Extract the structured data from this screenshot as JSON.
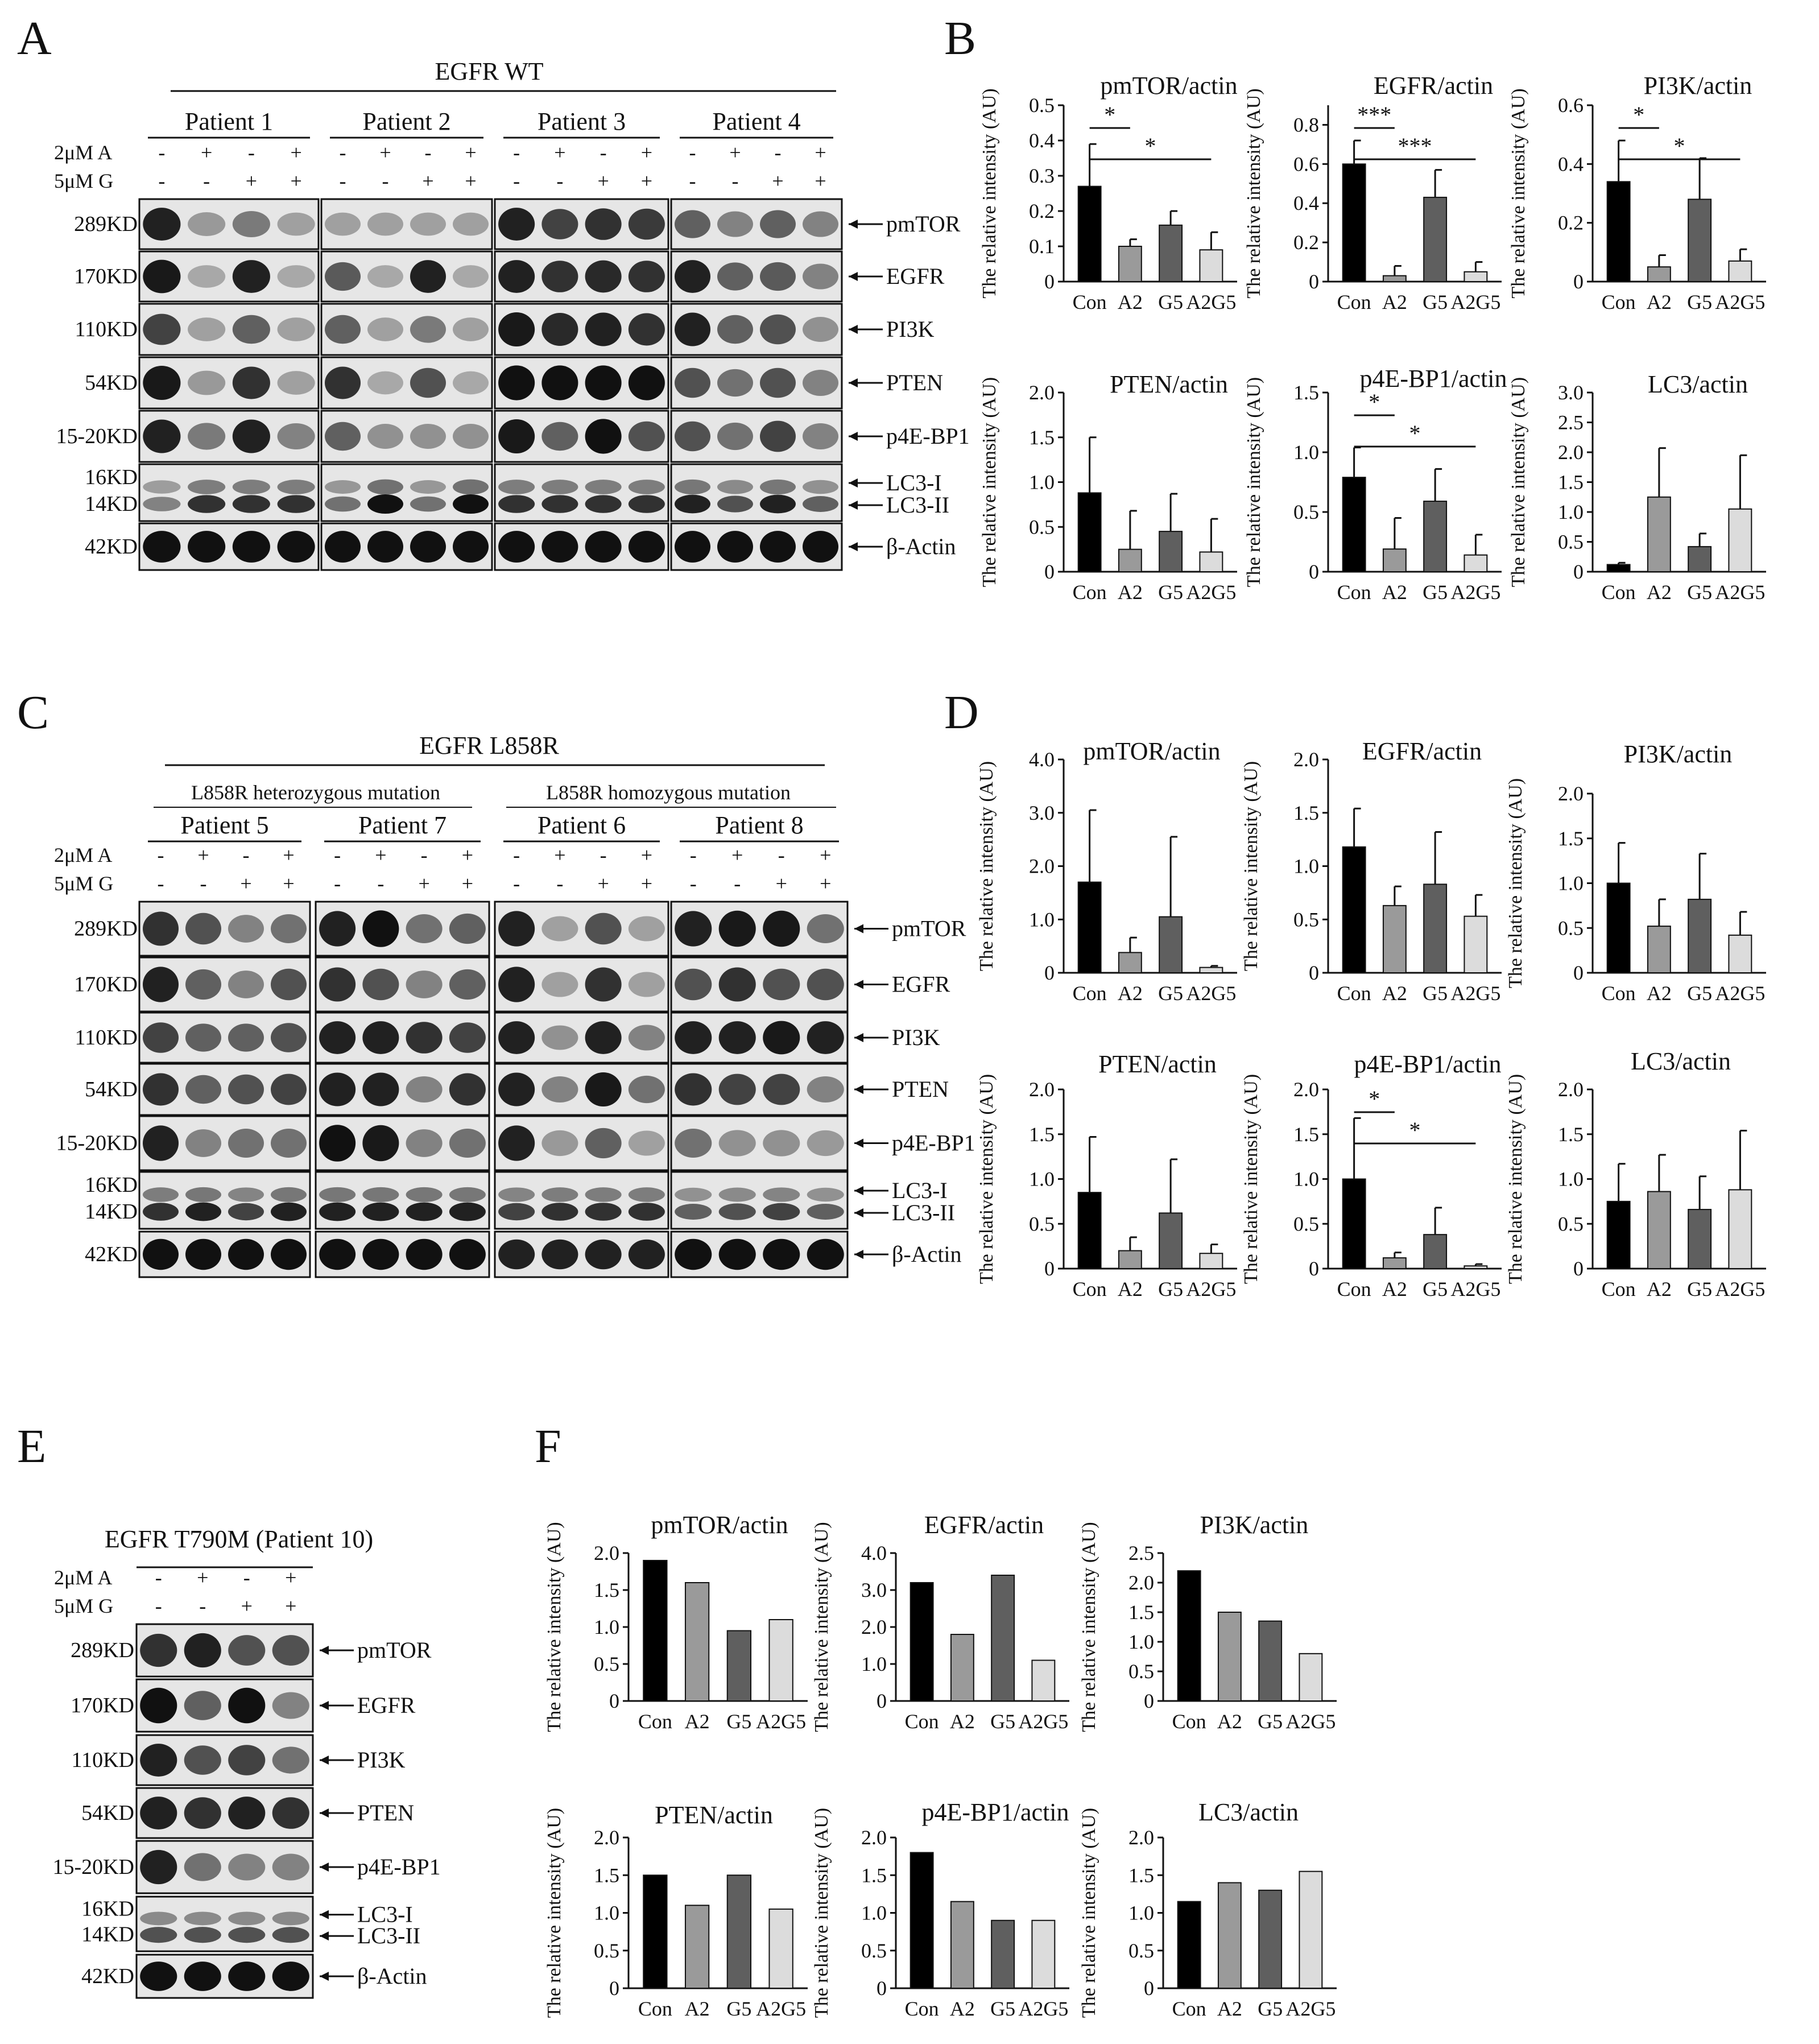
{
  "figure": {
    "panels": {
      "A": {
        "label": "A",
        "header": "EGFR  WT",
        "groups": [
          "Patient 1",
          "Patient 2",
          "Patient 3",
          "Patient 4"
        ],
        "conditions": [
          {
            "name": "2μM A",
            "signs": [
              "-",
              "+",
              "-",
              "+"
            ]
          },
          {
            "name": "5μM G",
            "signs": [
              "-",
              "-",
              "+",
              "+"
            ]
          }
        ],
        "rows": [
          {
            "kd": "289KD",
            "proteins": [
              "pmTOR"
            ]
          },
          {
            "kd": "170KD",
            "proteins": [
              "EGFR"
            ]
          },
          {
            "kd": "110KD",
            "proteins": [
              "PI3K"
            ]
          },
          {
            "kd": "54KD",
            "proteins": [
              "PTEN"
            ]
          },
          {
            "kd": "15-20KD",
            "proteins": [
              "p4E-BP1"
            ]
          },
          {
            "kd": "16KD\n14KD",
            "proteins": [
              "LC3-I",
              "LC3-II"
            ]
          },
          {
            "kd": "42KD",
            "proteins": [
              "β-Actin"
            ]
          }
        ]
      },
      "C": {
        "label": "C",
        "header": "EGFR  L858R",
        "subheaders": [
          "L858R heterozygous mutation",
          "L858R homozygous mutation"
        ],
        "groups": [
          "Patient 5",
          "Patient 7",
          "Patient 6",
          "Patient 8"
        ],
        "conditions": [
          {
            "name": "2μM A",
            "signs": [
              "-",
              "+",
              "-",
              "+"
            ]
          },
          {
            "name": "5μM G",
            "signs": [
              "-",
              "-",
              "+",
              "+"
            ]
          }
        ],
        "rows": [
          {
            "kd": "289KD",
            "proteins": [
              "pmTOR"
            ]
          },
          {
            "kd": "170KD",
            "proteins": [
              "EGFR"
            ]
          },
          {
            "kd": "110KD",
            "proteins": [
              "PI3K"
            ]
          },
          {
            "kd": "54KD",
            "proteins": [
              "PTEN"
            ]
          },
          {
            "kd": "15-20KD",
            "proteins": [
              "p4E-BP1"
            ]
          },
          {
            "kd": "16KD\n14KD",
            "proteins": [
              "LC3-I",
              "LC3-II"
            ]
          },
          {
            "kd": "42KD",
            "proteins": [
              "β-Actin"
            ]
          }
        ]
      },
      "E": {
        "label": "E",
        "header": "EGFR   T790M  (Patient 10)",
        "conditions": [
          {
            "name": "2μM A",
            "signs": [
              "-",
              "+",
              "-",
              "+"
            ]
          },
          {
            "name": "5μM G",
            "signs": [
              "-",
              "-",
              "+",
              "+"
            ]
          }
        ],
        "rows": [
          {
            "kd": "289KD",
            "proteins": [
              "pmTOR"
            ]
          },
          {
            "kd": "170KD",
            "proteins": [
              "EGFR"
            ]
          },
          {
            "kd": "110KD",
            "proteins": [
              "PI3K"
            ]
          },
          {
            "kd": "54KD",
            "proteins": [
              "PTEN"
            ]
          },
          {
            "kd": "15-20KD",
            "proteins": [
              "p4E-BP1"
            ]
          },
          {
            "kd": "16KD\n14KD",
            "proteins": [
              "LC3-I",
              "LC3-II"
            ]
          },
          {
            "kd": "42KD",
            "proteins": [
              "β-Actin"
            ]
          }
        ]
      },
      "B": {
        "label": "B"
      },
      "D": {
        "label": "D"
      },
      "F": {
        "label": "F"
      }
    }
  },
  "chart_data": [
    {
      "panel": "B",
      "type": "bar",
      "title": "pmTOR/actin",
      "ylabel": "The relative intensity (AU)",
      "categories": [
        "Con",
        "A2",
        "G5",
        "A2G5"
      ],
      "values": [
        0.27,
        0.1,
        0.16,
        0.09
      ],
      "errors": [
        0.12,
        0.02,
        0.04,
        0.05
      ],
      "ylim": [
        0,
        0.5
      ],
      "yticks": [
        "0",
        "0.1",
        "0.2",
        "0.3",
        "0.4",
        "0.5"
      ],
      "ytick_values": [
        0,
        0.1,
        0.2,
        0.3,
        0.4,
        0.5
      ],
      "significance": [
        {
          "from": 0,
          "to": 1,
          "label": "*"
        },
        {
          "from": 0,
          "to": 3,
          "label": "*"
        }
      ]
    },
    {
      "panel": "B",
      "type": "bar",
      "title": "EGFR/actin",
      "ylabel": "The relative intensity (AU)",
      "categories": [
        "Con",
        "A2",
        "G5",
        "A2G5"
      ],
      "values": [
        0.6,
        0.03,
        0.43,
        0.05
      ],
      "errors": [
        0.12,
        0.05,
        0.14,
        0.05
      ],
      "ylim": [
        0,
        0.9
      ],
      "yticks": [
        "0",
        "0.2",
        "0.4",
        "0.6",
        "0.8"
      ],
      "ytick_values": [
        0,
        0.2,
        0.4,
        0.6,
        0.8
      ],
      "significance": [
        {
          "from": 0,
          "to": 1,
          "label": "***"
        },
        {
          "from": 0,
          "to": 3,
          "label": "***"
        }
      ]
    },
    {
      "panel": "B",
      "type": "bar",
      "title": "PI3K/actin",
      "ylabel": "The relative intensity (AU)",
      "categories": [
        "Con",
        "A2",
        "G5",
        "A2G5"
      ],
      "values": [
        0.34,
        0.05,
        0.28,
        0.07
      ],
      "errors": [
        0.14,
        0.04,
        0.14,
        0.04
      ],
      "ylim": [
        0,
        0.6
      ],
      "yticks": [
        "0",
        "0.2",
        "0.4",
        "0.6"
      ],
      "ytick_values": [
        0,
        0.2,
        0.4,
        0.6
      ],
      "significance": [
        {
          "from": 0,
          "to": 1,
          "label": "*"
        },
        {
          "from": 0,
          "to": 3,
          "label": "*"
        }
      ]
    },
    {
      "panel": "B",
      "type": "bar",
      "title": "PTEN/actin",
      "ylabel": "The relative intensity (AU)",
      "categories": [
        "Con",
        "A2",
        "G5",
        "A2G5"
      ],
      "values": [
        0.88,
        0.25,
        0.45,
        0.22
      ],
      "errors": [
        0.62,
        0.43,
        0.42,
        0.37
      ],
      "ylim": [
        0,
        2.0
      ],
      "yticks": [
        "0",
        "0.5",
        "1.0",
        "1.5",
        "2.0"
      ],
      "ytick_values": [
        0,
        0.5,
        1.0,
        1.5,
        2.0
      ],
      "significance": []
    },
    {
      "panel": "B",
      "type": "bar",
      "title": "p4E-BP1/actin",
      "ylabel": "The relative intensity (AU)",
      "categories": [
        "Con",
        "A2",
        "G5",
        "A2G5"
      ],
      "values": [
        0.79,
        0.19,
        0.59,
        0.14
      ],
      "errors": [
        0.25,
        0.26,
        0.27,
        0.17
      ],
      "ylim": [
        0,
        1.5
      ],
      "yticks": [
        "0",
        "0.5",
        "1.0",
        "1.5"
      ],
      "ytick_values": [
        0,
        0.5,
        1.0,
        1.5
      ],
      "significance": [
        {
          "from": 0,
          "to": 1,
          "label": "*"
        },
        {
          "from": 0,
          "to": 3,
          "label": "*"
        }
      ]
    },
    {
      "panel": "B",
      "type": "bar",
      "title": "LC3/actin",
      "ylabel": "The relative intensity (AU)",
      "categories": [
        "Con",
        "A2",
        "G5",
        "A2G5"
      ],
      "values": [
        0.12,
        1.25,
        0.42,
        1.05
      ],
      "errors": [
        0.03,
        0.82,
        0.22,
        0.9
      ],
      "ylim": [
        0,
        3.0
      ],
      "yticks": [
        "0",
        "0.5",
        "1.0",
        "1.5",
        "2.0",
        "2.5",
        "3.0"
      ],
      "ytick_values": [
        0,
        0.5,
        1.0,
        1.5,
        2.0,
        2.5,
        3.0
      ],
      "significance": []
    },
    {
      "panel": "D",
      "type": "bar",
      "title": "pmTOR/actin",
      "ylabel": "The relative intensity (AU)",
      "categories": [
        "Con",
        "A2",
        "G5",
        "A2G5"
      ],
      "values": [
        1.7,
        0.38,
        1.05,
        0.1
      ],
      "errors": [
        1.35,
        0.28,
        1.5,
        0.03
      ],
      "ylim": [
        0,
        4.0
      ],
      "yticks": [
        "0",
        "1.0",
        "2.0",
        "3.0",
        "4.0"
      ],
      "ytick_values": [
        0,
        1.0,
        2.0,
        3.0,
        4.0
      ],
      "significance": []
    },
    {
      "panel": "D",
      "type": "bar",
      "title": "EGFR/actin",
      "ylabel": "The relative intensity (AU)",
      "categories": [
        "Con",
        "A2",
        "G5",
        "A2G5"
      ],
      "values": [
        1.18,
        0.63,
        0.83,
        0.53
      ],
      "errors": [
        0.36,
        0.18,
        0.49,
        0.2
      ],
      "ylim": [
        0,
        2.0
      ],
      "yticks": [
        "0",
        "0.5",
        "1.0",
        "1.5",
        "2.0"
      ],
      "ytick_values": [
        0,
        0.5,
        1.0,
        1.5,
        2.0
      ],
      "significance": []
    },
    {
      "panel": "D",
      "type": "bar",
      "title": "PI3K/actin",
      "ylabel": "The relative intensity (AU)",
      "categories": [
        "Con",
        "A2",
        "G5",
        "A2G5"
      ],
      "values": [
        1.0,
        0.52,
        0.82,
        0.42
      ],
      "errors": [
        0.45,
        0.3,
        0.51,
        0.26
      ],
      "ylim": [
        0,
        2.0
      ],
      "yticks": [
        "0",
        "0.5",
        "1.0",
        "1.5",
        "2.0"
      ],
      "ytick_values": [
        0,
        0.5,
        1.0,
        1.5,
        2.0
      ],
      "significance": []
    },
    {
      "panel": "D",
      "type": "bar",
      "title": "PTEN/actin",
      "ylabel": "The relative intensity (AU)",
      "categories": [
        "Con",
        "A2",
        "G5",
        "A2G5"
      ],
      "values": [
        0.85,
        0.2,
        0.62,
        0.17
      ],
      "errors": [
        0.62,
        0.15,
        0.6,
        0.1
      ],
      "ylim": [
        0,
        2.0
      ],
      "yticks": [
        "0",
        "0.5",
        "1.0",
        "1.5",
        "2.0"
      ],
      "ytick_values": [
        0,
        0.5,
        1.0,
        1.5,
        2.0
      ],
      "significance": []
    },
    {
      "panel": "D",
      "type": "bar",
      "title": "p4E-BP1/actin",
      "ylabel": "The relative intensity (AU)",
      "categories": [
        "Con",
        "A2",
        "G5",
        "A2G5"
      ],
      "values": [
        1.0,
        0.12,
        0.38,
        0.03
      ],
      "errors": [
        0.68,
        0.06,
        0.3,
        0.02
      ],
      "ylim": [
        0,
        2.0
      ],
      "yticks": [
        "0",
        "0.5",
        "1.0",
        "1.5",
        "2.0"
      ],
      "ytick_values": [
        0,
        0.5,
        1.0,
        1.5,
        2.0
      ],
      "significance": [
        {
          "from": 0,
          "to": 1,
          "label": "*"
        },
        {
          "from": 0,
          "to": 3,
          "label": "*"
        }
      ]
    },
    {
      "panel": "D",
      "type": "bar",
      "title": "LC3/actin",
      "ylabel": "The relative intensity (AU)",
      "categories": [
        "Con",
        "A2",
        "G5",
        "A2G5"
      ],
      "values": [
        0.75,
        0.86,
        0.66,
        0.88
      ],
      "errors": [
        0.42,
        0.41,
        0.37,
        0.66
      ],
      "ylim": [
        0,
        2.0
      ],
      "yticks": [
        "0",
        "0.5",
        "1.0",
        "1.5",
        "2.0"
      ],
      "ytick_values": [
        0,
        0.5,
        1.0,
        1.5,
        2.0
      ],
      "significance": []
    },
    {
      "panel": "F",
      "type": "bar",
      "title": "pmTOR/actin",
      "ylabel": "The relative intensity (AU)",
      "categories": [
        "Con",
        "A2",
        "G5",
        "A2G5"
      ],
      "values": [
        1.9,
        1.6,
        0.95,
        1.1
      ],
      "ylim": [
        0,
        2.0
      ],
      "yticks": [
        "0",
        "0.5",
        "1.0",
        "1.5",
        "2.0"
      ],
      "ytick_values": [
        0,
        0.5,
        1.0,
        1.5,
        2.0
      ],
      "significance": []
    },
    {
      "panel": "F",
      "type": "bar",
      "title": "EGFR/actin",
      "ylabel": "The relative intensity (AU)",
      "categories": [
        "Con",
        "A2",
        "G5",
        "A2G5"
      ],
      "values": [
        3.2,
        1.8,
        3.4,
        1.1
      ],
      "ylim": [
        0,
        4.0
      ],
      "yticks": [
        "0",
        "1.0",
        "2.0",
        "3.0",
        "4.0"
      ],
      "ytick_values": [
        0,
        1.0,
        2.0,
        3.0,
        4.0
      ],
      "significance": []
    },
    {
      "panel": "F",
      "type": "bar",
      "title": "PI3K/actin",
      "ylabel": "The relative intensity (AU)",
      "categories": [
        "Con",
        "A2",
        "G5",
        "A2G5"
      ],
      "values": [
        2.2,
        1.5,
        1.35,
        0.8
      ],
      "ylim": [
        0,
        2.5
      ],
      "yticks": [
        "0",
        "0.5",
        "1.0",
        "1.5",
        "2.0",
        "2.5"
      ],
      "ytick_values": [
        0,
        0.5,
        1.0,
        1.5,
        2.0,
        2.5
      ],
      "significance": []
    },
    {
      "panel": "F",
      "type": "bar",
      "title": "PTEN/actin",
      "ylabel": "The relative intensity (AU)",
      "categories": [
        "Con",
        "A2",
        "G5",
        "A2G5"
      ],
      "values": [
        1.5,
        1.1,
        1.5,
        1.05
      ],
      "ylim": [
        0,
        2.0
      ],
      "yticks": [
        "0",
        "0.5",
        "1.0",
        "1.5",
        "2.0"
      ],
      "ytick_values": [
        0,
        0.5,
        1.0,
        1.5,
        2.0
      ],
      "significance": []
    },
    {
      "panel": "F",
      "type": "bar",
      "title": "p4E-BP1/actin",
      "ylabel": "The relative intensity (AU)",
      "categories": [
        "Con",
        "A2",
        "G5",
        "A2G5"
      ],
      "values": [
        1.8,
        1.15,
        0.9,
        0.9
      ],
      "ylim": [
        0,
        2.0
      ],
      "yticks": [
        "0",
        "0.5",
        "1.0",
        "1.5",
        "2.0"
      ],
      "ytick_values": [
        0,
        0.5,
        1.0,
        1.5,
        2.0
      ],
      "significance": []
    },
    {
      "panel": "F",
      "type": "bar",
      "title": "LC3/actin",
      "ylabel": "The relative intensity (AU)",
      "categories": [
        "Con",
        "A2",
        "G5",
        "A2G5"
      ],
      "values": [
        1.15,
        1.4,
        1.3,
        1.55
      ],
      "ylim": [
        0,
        2.0
      ],
      "yticks": [
        "0",
        "0.5",
        "1.0",
        "1.5",
        "2.0"
      ],
      "ytick_values": [
        0,
        0.5,
        1.0,
        1.5,
        2.0
      ],
      "significance": []
    }
  ],
  "bar_colors": [
    "#000000",
    "#9a9a9a",
    "#5f5f5f",
    "#dcdcdc"
  ]
}
